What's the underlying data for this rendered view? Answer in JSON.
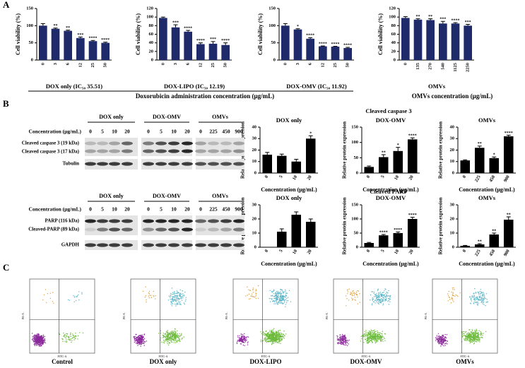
{
  "chart_data": [
    {
      "type": "bar",
      "xlabel": "DOX only (IC₅₀ 35.51)",
      "ylabel": "Cell viability (%)",
      "categories": [
        "0",
        "3",
        "6",
        "12",
        "25",
        "50"
      ],
      "values": [
        100,
        91,
        85,
        64,
        55,
        50
      ],
      "errors": [
        6,
        2,
        2,
        3,
        2,
        2
      ],
      "annotations": [
        "",
        "**",
        "**",
        "***",
        "****",
        "****"
      ],
      "ylim": [
        0,
        150
      ],
      "yticks": [
        0,
        50,
        100,
        150
      ],
      "color": "#1f2a6b"
    },
    {
      "type": "bar",
      "xlabel": "DOX-LIPO (IC₅₀ 12.19)",
      "ylabel": "Cell viability (%)",
      "categories": [
        "0",
        "3",
        "6",
        "12",
        "25",
        "50"
      ],
      "values": [
        98,
        76,
        66,
        37,
        38,
        35
      ],
      "errors": [
        2,
        6,
        3,
        3,
        5,
        5
      ],
      "annotations": [
        "",
        "***",
        "****",
        "****",
        "***",
        "****"
      ],
      "ylim": [
        0,
        120
      ],
      "yticks": [
        0,
        20,
        40,
        60,
        80,
        100,
        120
      ],
      "color": "#1f2a6b"
    },
    {
      "type": "bar",
      "xlabel": "DOX-OMV (IC₅₀ 11.92)",
      "ylabel": "Cell viability (%)",
      "categories": [
        "0",
        "3",
        "6",
        "12",
        "25",
        "50"
      ],
      "values": [
        100,
        89,
        62,
        40,
        39,
        35
      ],
      "errors": [
        6,
        2,
        3,
        1,
        1,
        2
      ],
      "annotations": [
        "",
        "*",
        "****",
        "****",
        "****",
        "****"
      ],
      "ylim": [
        0,
        150
      ],
      "yticks": [
        0,
        50,
        100,
        150
      ],
      "color": "#1f2a6b"
    },
    {
      "type": "bar",
      "xlabel": "OMVs",
      "ylabel": "Cell viability (%)",
      "categories": [
        "0",
        "135",
        "270",
        "540",
        "1125",
        "2250"
      ],
      "values": [
        98,
        94,
        93,
        85,
        85,
        80
      ],
      "errors": [
        3,
        2,
        3,
        5,
        2,
        3
      ],
      "annotations": [
        "",
        "**",
        "**",
        "***",
        "****",
        "***"
      ],
      "ylim": [
        0,
        120
      ],
      "yticks": [
        0,
        20,
        40,
        60,
        80,
        100,
        120
      ],
      "color": "#1f2a6b"
    },
    {
      "type": "bar",
      "title": "DOX only",
      "xlabel": "Concentration (μg/mL)",
      "ylabel": "Relative protein expression",
      "categories": [
        "0",
        "5",
        "10",
        "20"
      ],
      "values": [
        16,
        15,
        10,
        30
      ],
      "errors": [
        2,
        1.5,
        2,
        2.5
      ],
      "annotations": [
        "",
        "",
        "",
        "*"
      ],
      "ylim": [
        0,
        40
      ],
      "yticks": [
        0,
        10,
        20,
        30,
        40
      ],
      "color": "#000000"
    },
    {
      "type": "bar",
      "title": "DOX-OMV",
      "xlabel": "Concentration (μg/mL)",
      "ylabel": "Relative protein expression",
      "categories": [
        "0",
        "5",
        "10",
        "20"
      ],
      "values": [
        20,
        52,
        72,
        110
      ],
      "errors": [
        3,
        8,
        12,
        5
      ],
      "annotations": [
        "",
        "**",
        "*",
        "****"
      ],
      "ylim": [
        0,
        150
      ],
      "yticks": [
        0,
        50,
        100,
        150
      ],
      "color": "#000000"
    },
    {
      "type": "bar",
      "title": "OMVs",
      "xlabel": "Concentration (μg/mL)",
      "ylabel": "Relative protein expression",
      "categories": [
        "0",
        "225",
        "450",
        "900"
      ],
      "values": [
        11,
        22,
        13,
        32
      ],
      "errors": [
        0.5,
        1.5,
        1,
        1
      ],
      "annotations": [
        "",
        "**",
        "*",
        "****"
      ],
      "ylim": [
        0,
        40
      ],
      "yticks": [
        0,
        10,
        20,
        30,
        40
      ],
      "color": "#000000"
    },
    {
      "type": "bar",
      "title": "DOX only",
      "xlabel": "Concentration (μg/mL)",
      "ylabel": "Relative protein expression",
      "categories": [
        "0",
        "5",
        "10",
        "20"
      ],
      "values": [
        0,
        11,
        23,
        18
      ],
      "errors": [
        0,
        2,
        2,
        2
      ],
      "annotations": [
        "",
        "",
        "",
        ""
      ],
      "ylim": [
        0,
        30
      ],
      "yticks": [
        0,
        10,
        20,
        30
      ],
      "color": "#000000"
    },
    {
      "type": "bar",
      "title": "DOX-OMV",
      "xlabel": "Concentration (μg/mL)",
      "ylabel": "Relative protein expression",
      "categories": [
        "0",
        "5",
        "10",
        "20"
      ],
      "values": [
        15,
        42,
        50,
        100
      ],
      "errors": [
        2,
        3,
        4,
        6
      ],
      "annotations": [
        "",
        "****",
        "****",
        "****"
      ],
      "ylim": [
        0,
        150
      ],
      "yticks": [
        0,
        50,
        100,
        150
      ],
      "color": "#000000"
    },
    {
      "type": "bar",
      "title": "OMVs",
      "xlabel": "Concentration (μg/mL)",
      "ylabel": "Relative protein expression",
      "categories": [
        "0",
        "225",
        "450",
        "900"
      ],
      "values": [
        1,
        2,
        9,
        19.5
      ],
      "errors": [
        0.3,
        0.5,
        1,
        2
      ],
      "annotations": [
        "",
        "**",
        "**",
        "**"
      ],
      "ylim": [
        0,
        30
      ],
      "yticks": [
        0,
        10,
        20,
        30
      ],
      "color": "#000000"
    }
  ],
  "panel_labels": [
    "A",
    "B",
    "C"
  ],
  "axis_group_labels": [
    "Doxorubicin administration concentration (μg/mL)",
    "OMVs concentration (μg/mL)"
  ],
  "protein_titles": [
    "Cleaved caspase 3",
    "Cleaved PARP"
  ],
  "blots": [
    {
      "groups": [
        "DOX only",
        "DOX-OMV",
        "OMVs"
      ],
      "concentration_label": "Concentration (μg/mL)",
      "concentrations": [
        "0",
        "5",
        "10",
        "20",
        "0",
        "5",
        "10",
        "20",
        "0",
        "225",
        "450",
        "900"
      ],
      "rows": [
        "Cleaved caspase 3 (19 kDa)",
        "Cleaved caspase 3 (17 kDa)",
        "Tubulin"
      ]
    },
    {
      "groups": [
        "DOX only",
        "DOX-OMV",
        "OMVs"
      ],
      "concentration_label": "Concentration (μg/mL)",
      "concentrations": [
        "0",
        "5",
        "10",
        "20",
        "0",
        "5",
        "10",
        "20",
        "0",
        "225",
        "450",
        "900"
      ],
      "rows": [
        "PARP (116 kDa)",
        "Cleaved-PARP (89 kDa)",
        "GAPDH"
      ]
    }
  ],
  "flow": {
    "samples": [
      "Control",
      "DOX only",
      "DOX-LIPO",
      "DOX-OMV",
      "OMVs"
    ],
    "x_axis": "FITC-A",
    "y_axis": "PE-A"
  }
}
